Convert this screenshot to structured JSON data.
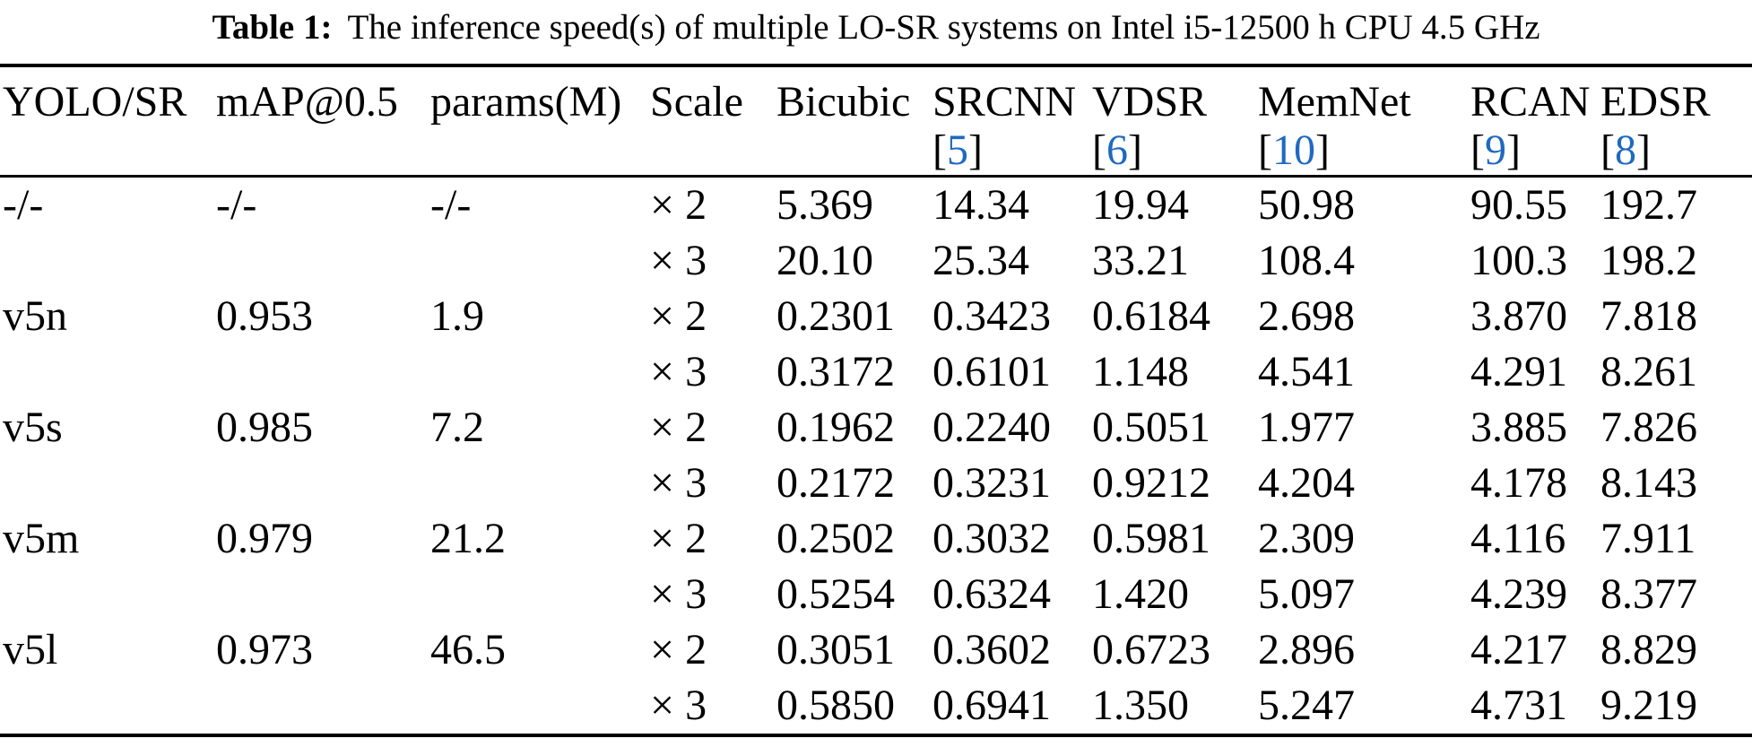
{
  "caption": {
    "label": "Table 1:",
    "text": "The inference speed(s) of multiple LO-SR systems on Intel i5-12500 h CPU 4.5 GHz"
  },
  "colors": {
    "citation_blue": "#2069c0",
    "text": "#000000",
    "background": "#ffffff"
  },
  "table": {
    "cite_open": "[",
    "cite_close": "]",
    "columns": [
      {
        "label": "YOLO/SR"
      },
      {
        "label": "mAP@0.5"
      },
      {
        "label": "params(M)"
      },
      {
        "label": "Scale"
      },
      {
        "label": "Bicubic"
      },
      {
        "label": "SRCNN",
        "cite": "5"
      },
      {
        "label": "VDSR",
        "cite": "6"
      },
      {
        "label": "MemNet",
        "cite": "10"
      },
      {
        "label": "RCAN",
        "cite": "9"
      },
      {
        "label": "EDSR",
        "cite": "8"
      }
    ],
    "rows": [
      [
        "-/-",
        "-/-",
        "-/-",
        "× 2",
        "5.369",
        "14.34",
        "19.94",
        "50.98",
        "90.55",
        "192.7"
      ],
      [
        "",
        "",
        "",
        "× 3",
        "20.10",
        "25.34",
        "33.21",
        "108.4",
        "100.3",
        "198.2"
      ],
      [
        "v5n",
        "0.953",
        "1.9",
        "× 2",
        "0.2301",
        "0.3423",
        "0.6184",
        "2.698",
        "3.870",
        "7.818"
      ],
      [
        "",
        "",
        "",
        "× 3",
        "0.3172",
        "0.6101",
        "1.148",
        "4.541",
        "4.291",
        "8.261"
      ],
      [
        "v5s",
        "0.985",
        "7.2",
        "× 2",
        "0.1962",
        "0.2240",
        "0.5051",
        "1.977",
        "3.885",
        "7.826"
      ],
      [
        "",
        "",
        "",
        "× 3",
        "0.2172",
        "0.3231",
        "0.9212",
        "4.204",
        "4.178",
        "8.143"
      ],
      [
        "v5m",
        "0.979",
        "21.2",
        "× 2",
        "0.2502",
        "0.3032",
        "0.5981",
        "2.309",
        "4.116",
        "7.911"
      ],
      [
        "",
        "",
        "",
        "× 3",
        "0.5254",
        "0.6324",
        "1.420",
        "5.097",
        "4.239",
        "8.377"
      ],
      [
        "v5l",
        "0.973",
        "46.5",
        "× 2",
        "0.3051",
        "0.3602",
        "0.6723",
        "2.896",
        "4.217",
        "8.829"
      ],
      [
        "",
        "",
        "",
        "× 3",
        "0.5850",
        "0.6941",
        "1.350",
        "5.247",
        "4.731",
        "9.219"
      ]
    ]
  },
  "chart_data": {
    "type": "table",
    "title": "Table 1: The inference speed(s) of multiple LO-SR systems on Intel i5-12500 h CPU 4.5 GHz",
    "columns": [
      "YOLO/SR",
      "mAP@0.5",
      "params(M)",
      "Scale",
      "Bicubic",
      "SRCNN [5]",
      "VDSR [6]",
      "MemNet [10]",
      "RCAN [9]",
      "EDSR [8]"
    ],
    "rows": [
      [
        "-/-",
        "-/-",
        "-/-",
        "× 2",
        5.369,
        14.34,
        19.94,
        50.98,
        90.55,
        192.7
      ],
      [
        "",
        "",
        "",
        "× 3",
        20.1,
        25.34,
        33.21,
        108.4,
        100.3,
        198.2
      ],
      [
        "v5n",
        0.953,
        1.9,
        "× 2",
        0.2301,
        0.3423,
        0.6184,
        2.698,
        3.87,
        7.818
      ],
      [
        "",
        "",
        "",
        "× 3",
        0.3172,
        0.6101,
        1.148,
        4.541,
        4.291,
        8.261
      ],
      [
        "v5s",
        0.985,
        7.2,
        "× 2",
        0.1962,
        0.224,
        0.5051,
        1.977,
        3.885,
        7.826
      ],
      [
        "",
        "",
        "",
        "× 3",
        0.2172,
        0.3231,
        0.9212,
        4.204,
        4.178,
        8.143
      ],
      [
        "v5m",
        0.979,
        21.2,
        "× 2",
        0.2502,
        0.3032,
        0.5981,
        2.309,
        4.116,
        7.911
      ],
      [
        "",
        "",
        "",
        "× 3",
        0.5254,
        0.6324,
        1.42,
        5.097,
        4.239,
        8.377
      ],
      [
        "v5l",
        0.973,
        46.5,
        "× 2",
        0.3051,
        0.3602,
        0.6723,
        2.896,
        4.217,
        8.829
      ],
      [
        "",
        "",
        "",
        "× 3",
        0.585,
        0.6941,
        1.35,
        5.247,
        4.731,
        9.219
      ]
    ]
  }
}
